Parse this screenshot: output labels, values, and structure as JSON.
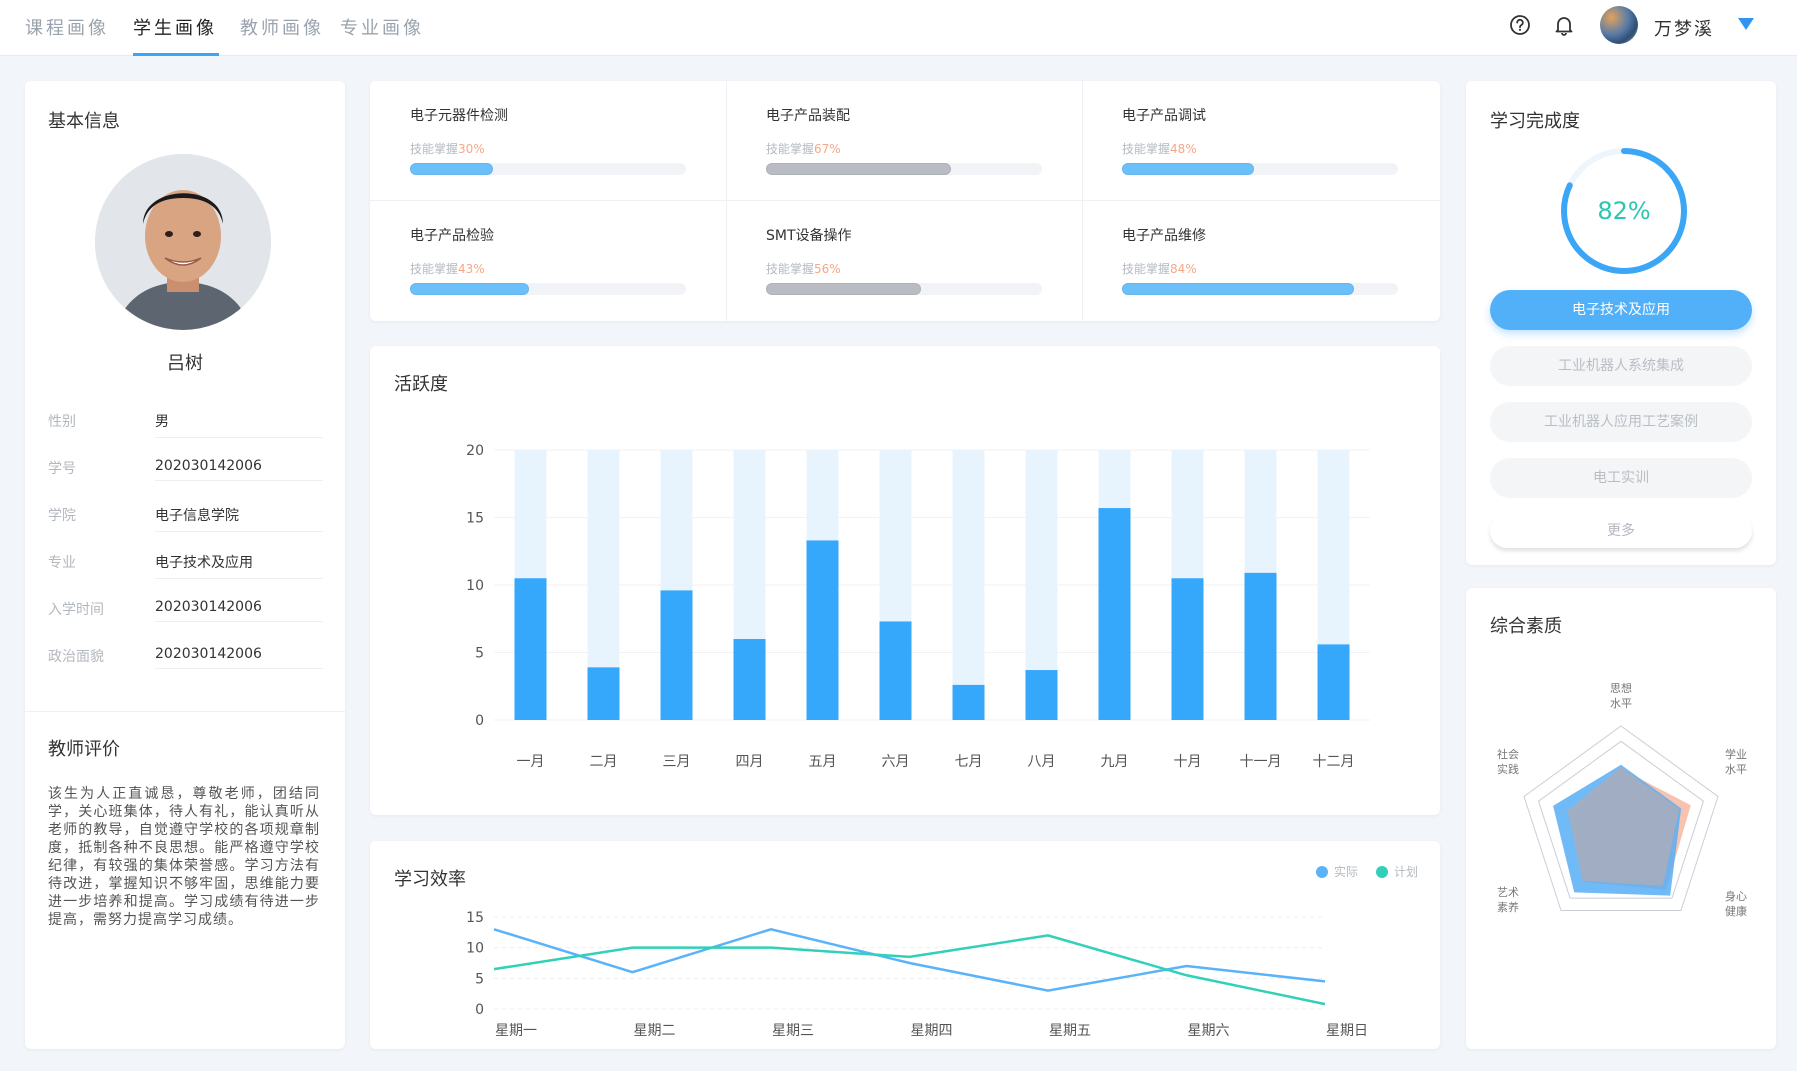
{
  "nav": {
    "tabs": [
      {
        "label": "课程画像"
      },
      {
        "label": "学生画像"
      },
      {
        "label": "教师画像"
      },
      {
        "label": "专业画像"
      }
    ],
    "active_index": 1,
    "user_name": "万梦溪",
    "icons": [
      "help-icon",
      "bell-icon",
      "avatar",
      "caret-down-icon"
    ]
  },
  "basic_info": {
    "title": "基本信息",
    "name": "吕树",
    "fields": [
      {
        "label": "性别",
        "value": "男"
      },
      {
        "label": "学号",
        "value": "202030142006"
      },
      {
        "label": "学院",
        "value": "电子信息学院"
      },
      {
        "label": "专业",
        "value": "电子技术及应用"
      },
      {
        "label": "入学时间",
        "value": "202030142006"
      },
      {
        "label": "政治面貌",
        "value": "202030142006"
      }
    ]
  },
  "teacher_eval": {
    "title": "教师评价",
    "text": "该生为人正直诚恳，尊敬老师，团结同学，关心班集体，待人有礼，能认真听从老师的教导，自觉遵守学校的各项规章制度，抵制各种不良思想。能严格遵守学校纪律，有较强的集体荣誉感。学习方法有待改进，掌握知识不够牢固，思维能力要进一步培养和提高。学习成绩有待进一步提高，需努力提高学习成绩。"
  },
  "skills": {
    "sub_label": "技能掌握",
    "items": [
      {
        "name": "电子元器件检测",
        "percent": "30%",
        "value": 0.3,
        "color": "#6cc0fa"
      },
      {
        "name": "电子产品装配",
        "percent": "67%",
        "value": 0.67,
        "color": "#b9bcc2"
      },
      {
        "name": "电子产品调试",
        "percent": "48%",
        "value": 0.48,
        "color": "#6cc0fa"
      },
      {
        "name": "电子产品检验",
        "percent": "43%",
        "value": 0.43,
        "color": "#6cc0fa"
      },
      {
        "name": "SMT设备操作",
        "percent": "56%",
        "value": 0.56,
        "color": "#b9bcc2"
      },
      {
        "name": "电子产品维修",
        "percent": "84%",
        "value": 0.84,
        "color": "#6cc0fa"
      }
    ]
  },
  "completion": {
    "title": "学习完成度",
    "percent_label": "82%",
    "value": 0.82,
    "courses": [
      {
        "label": "电子技术及应用",
        "active": true
      },
      {
        "label": "工业机器人系统集成",
        "active": false
      },
      {
        "label": "工业机器人应用工艺案例",
        "active": false
      },
      {
        "label": "电工实训",
        "active": false
      }
    ],
    "more_label": "更多"
  },
  "activity": {
    "title": "活跃度",
    "chart_data": {
      "type": "bar",
      "categories": [
        "一月",
        "二月",
        "三月",
        "四月",
        "五月",
        "六月",
        "七月",
        "八月",
        "九月",
        "十月",
        "十一月",
        "十二月"
      ],
      "values": [
        10.5,
        3.9,
        9.6,
        6.0,
        13.3,
        7.3,
        2.6,
        3.7,
        15.7,
        10.5,
        10.9,
        5.6
      ],
      "max_value": 20,
      "ylim": [
        0,
        20
      ],
      "yticks": [
        0,
        5,
        10,
        15,
        20
      ],
      "colors": {
        "bar": "#35a8fb",
        "background_bar": "#e8f4fd"
      }
    }
  },
  "efficiency": {
    "title": "学习效率",
    "chart_data": {
      "type": "line",
      "categories": [
        "星期一",
        "星期二",
        "星期三",
        "星期四",
        "星期五",
        "星期六",
        "星期日"
      ],
      "series": [
        {
          "name": "实际",
          "values": [
            13,
            6,
            13,
            7.5,
            3,
            7,
            4.5
          ],
          "color": "#5ab3f9"
        },
        {
          "name": "计划",
          "values": [
            6.5,
            10,
            10,
            8.5,
            12,
            5.5,
            0.8
          ],
          "color": "#31d0b8"
        }
      ],
      "ylim": [
        0,
        15
      ],
      "yticks": [
        0,
        5,
        10,
        15
      ],
      "legend": "top-right"
    }
  },
  "quality": {
    "title": "综合素质",
    "chart_data": {
      "type": "radar",
      "axes": [
        {
          "l1": "思想",
          "l2": "水平"
        },
        {
          "l1": "学业",
          "l2": "水平"
        },
        {
          "l1": "身心",
          "l2": "健康"
        },
        {
          "l1": "艺术",
          "l2": "素养"
        },
        {
          "l1": "社会",
          "l2": "实践"
        }
      ],
      "max": 100,
      "series": [
        {
          "values": [
            58,
            72,
            75,
            65,
            48
          ],
          "color": "#f7b9a0"
        },
        {
          "values": [
            62,
            62,
            82,
            78,
            70
          ],
          "color": "#58aef7"
        },
        {
          "values": [
            60,
            60,
            70,
            64,
            55
          ],
          "color": "#a8adbb"
        }
      ]
    }
  }
}
